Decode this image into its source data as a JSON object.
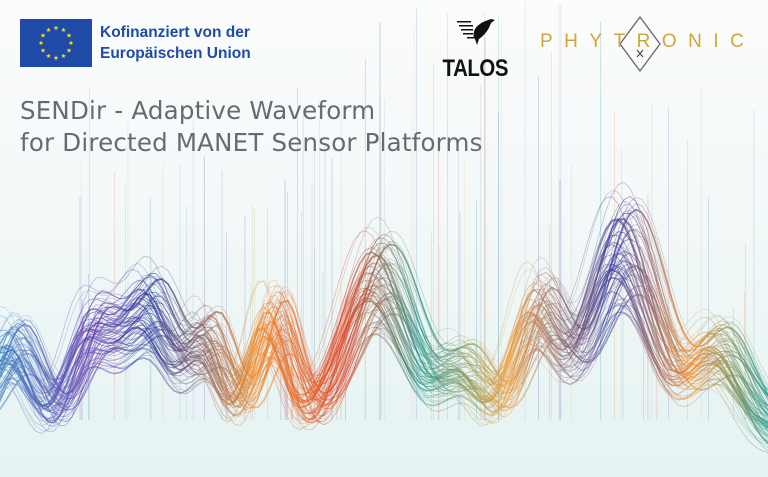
{
  "eu_logo": {
    "line1": "Kofinanziert von der",
    "line2": "Europäischen Union",
    "flag_color": "#1f4aa8",
    "star_color": "#ffdd00"
  },
  "talos_logo": {
    "text": "TALOS",
    "icon": "bird-icon"
  },
  "phytronic_logo": {
    "text": "PHYTRONIC",
    "color": "#cfa63a"
  },
  "title": {
    "line1": "SENDir - Adaptive Waveform",
    "line2": "for Directed MANET Sensor Platforms"
  },
  "colors": {
    "title": "#666b70",
    "wave_palette": [
      "#3b3aa0",
      "#6a3fb0",
      "#e0462a",
      "#f08a2a",
      "#2a9a8a",
      "#3a7fc0"
    ]
  }
}
